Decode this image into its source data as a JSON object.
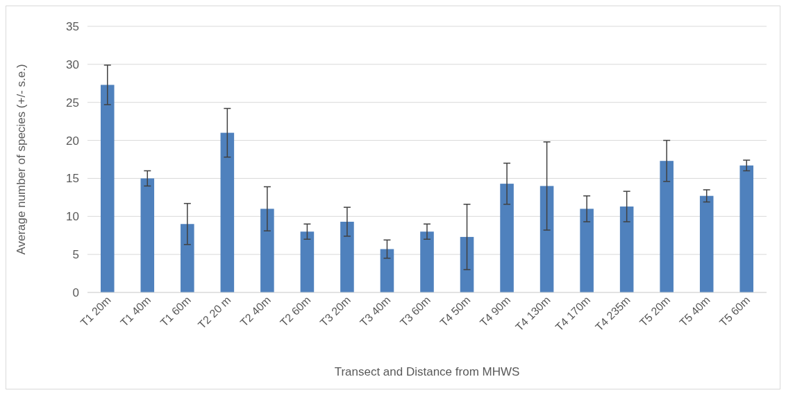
{
  "chart_data": {
    "type": "bar",
    "xlabel": "Transect and Distance from MHWS",
    "ylabel": "Average number of species (+/- s.e.)",
    "categories": [
      "T1 20m",
      "T1 40m",
      "T1 60m",
      "T2 20 m",
      "T2 40m",
      "T2 60m",
      "T3 20m",
      "T3 40m",
      "T3 60m",
      "T4 50m",
      "T4 90m",
      "T4 130m",
      "T4 170m",
      "T4 235m",
      "T5 20m",
      "T5 40m",
      "T5 60m"
    ],
    "values": [
      27.3,
      15,
      9,
      21,
      11,
      8,
      9.3,
      5.7,
      8,
      7.3,
      14.3,
      14,
      11,
      11.3,
      17.3,
      12.7,
      16.7
    ],
    "errors": [
      2.6,
      1,
      2.7,
      3.2,
      2.9,
      1,
      1.9,
      1.2,
      1,
      4.3,
      2.7,
      5.8,
      1.7,
      2,
      2.7,
      0.8,
      0.7
    ],
    "color": "#4f81bd",
    "ylim": [
      0,
      35
    ],
    "yticks": [
      0,
      5,
      10,
      15,
      20,
      25,
      30,
      35
    ],
    "grid": "y"
  }
}
